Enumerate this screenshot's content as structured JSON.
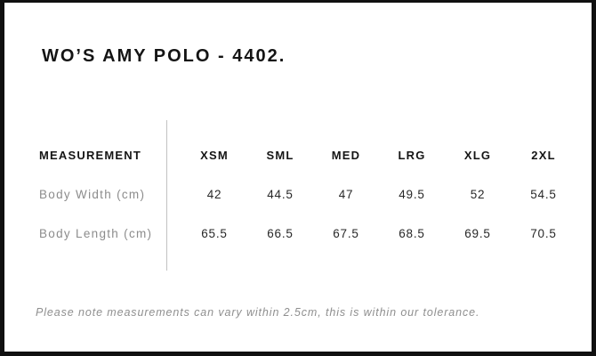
{
  "title": "WO’S AMY POLO - 4402.",
  "table": {
    "header": [
      "MEASUREMENT",
      "XSM",
      "SML",
      "MED",
      "LRG",
      "XLG",
      "2XL"
    ],
    "rows": [
      {
        "label": "Body Width (cm)",
        "values": [
          "42",
          "44.5",
          "47",
          "49.5",
          "52",
          "54.5"
        ]
      },
      {
        "label": "Body Length (cm)",
        "values": [
          "65.5",
          "66.5",
          "67.5",
          "68.5",
          "69.5",
          "70.5"
        ]
      }
    ]
  },
  "note": "Please note measurements can vary within 2.5cm, this is within our tolerance.",
  "colors": {
    "frame_border": "#101010",
    "heading_text": "#141414",
    "row_label_gray": "#8c8c8c",
    "value_text": "#282828",
    "divider_gray": "#c2c2c2",
    "note_gray": "#8f8f8f",
    "background": "#ffffff"
  },
  "chart_data": {
    "type": "table",
    "title": "WO’S AMY POLO - 4402.",
    "columns": [
      "MEASUREMENT",
      "XSM",
      "SML",
      "MED",
      "LRG",
      "XLG",
      "2XL"
    ],
    "rows": [
      {
        "measurement": "Body Width (cm)",
        "XSM": 42,
        "SML": 44.5,
        "MED": 47,
        "LRG": 49.5,
        "XLG": 52,
        "2XL": 54.5
      },
      {
        "measurement": "Body Length (cm)",
        "XSM": 65.5,
        "SML": 66.5,
        "MED": 67.5,
        "LRG": 68.5,
        "XLG": 69.5,
        "2XL": 70.5
      }
    ],
    "footnote": "Please note measurements can vary within 2.5cm, this is within our tolerance.",
    "layout_hints": {
      "divider_between_label_and_sizes": true,
      "grid": "off",
      "units": "cm"
    }
  }
}
